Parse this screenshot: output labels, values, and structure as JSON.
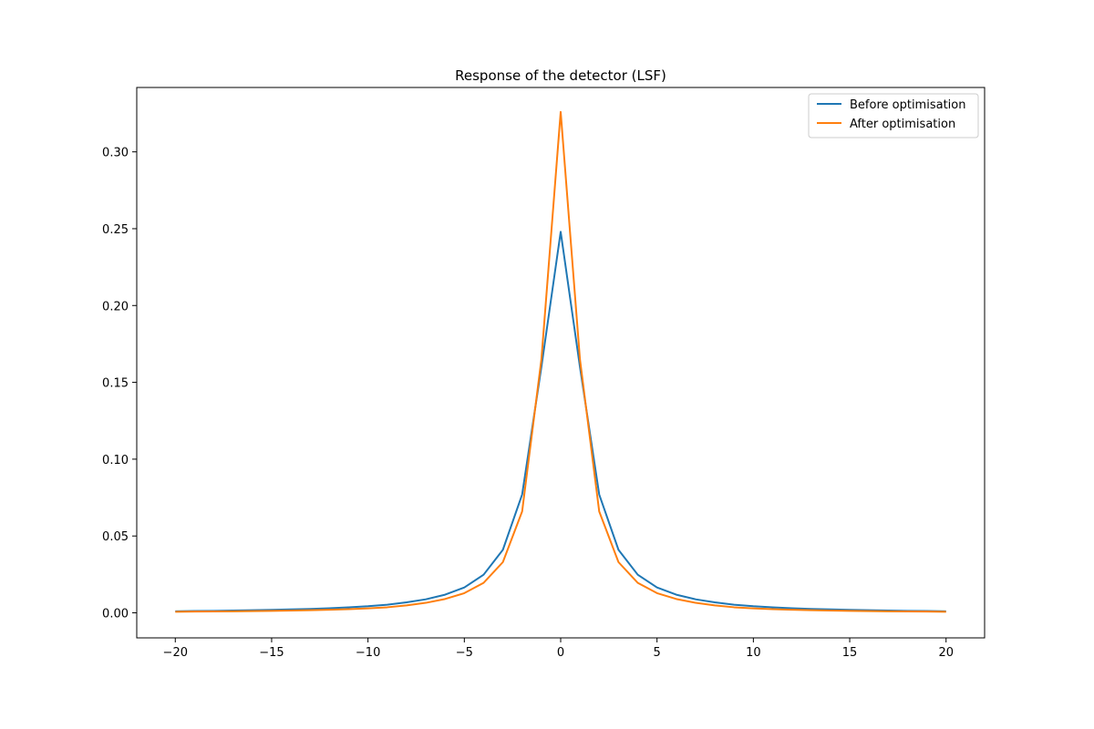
{
  "chart_data": {
    "type": "line",
    "title": "Response of the detector (LSF)",
    "xlabel": "",
    "ylabel": "",
    "xlim": [
      -22,
      22
    ],
    "ylim": [
      -0.0163,
      0.3419
    ],
    "grid": false,
    "legend_position": "top-right",
    "x_ticks": [
      -20,
      -15,
      -10,
      -5,
      0,
      5,
      10,
      15,
      20
    ],
    "x_tick_labels": [
      "−20",
      "−15",
      "−10",
      "−5",
      "0",
      "5",
      "10",
      "15",
      "20"
    ],
    "y_ticks": [
      0,
      0.05,
      0.1,
      0.15,
      0.2,
      0.25,
      0.3
    ],
    "y_tick_labels": [
      "0.00",
      "0.05",
      "0.10",
      "0.15",
      "0.20",
      "0.25",
      "0.30"
    ],
    "x": [
      -20,
      -19,
      -18,
      -17,
      -16,
      -15,
      -14,
      -13,
      -12,
      -11,
      -10,
      -9,
      -8,
      -7,
      -6,
      -5,
      -4,
      -3,
      -2,
      -1,
      0,
      1,
      2,
      3,
      4,
      5,
      6,
      7,
      8,
      9,
      10,
      11,
      12,
      13,
      14,
      15,
      16,
      17,
      18,
      19,
      20
    ],
    "series": [
      {
        "name": "Before optimisation",
        "color": "#1f77b4",
        "values": [
          0.001,
          0.0012,
          0.0013,
          0.0015,
          0.0017,
          0.0019,
          0.0022,
          0.0025,
          0.003,
          0.0036,
          0.0043,
          0.0053,
          0.0068,
          0.0088,
          0.0118,
          0.0165,
          0.0248,
          0.041,
          0.077,
          0.16,
          0.248,
          0.16,
          0.077,
          0.041,
          0.0248,
          0.0165,
          0.0118,
          0.0088,
          0.0068,
          0.0053,
          0.0043,
          0.0036,
          0.003,
          0.0025,
          0.0022,
          0.0019,
          0.0017,
          0.0015,
          0.0013,
          0.0012,
          0.001
        ]
      },
      {
        "name": "After optimisation",
        "color": "#ff7f0e",
        "values": [
          0.0007,
          0.0008,
          0.0009,
          0.001,
          0.0011,
          0.0013,
          0.0015,
          0.0017,
          0.002,
          0.0024,
          0.0029,
          0.0036,
          0.0048,
          0.0065,
          0.009,
          0.0128,
          0.0195,
          0.033,
          0.066,
          0.165,
          0.326,
          0.165,
          0.066,
          0.033,
          0.0195,
          0.0128,
          0.009,
          0.0065,
          0.0048,
          0.0036,
          0.0029,
          0.0024,
          0.002,
          0.0017,
          0.0015,
          0.0013,
          0.0011,
          0.001,
          0.0009,
          0.0008,
          0.0007
        ]
      }
    ]
  }
}
